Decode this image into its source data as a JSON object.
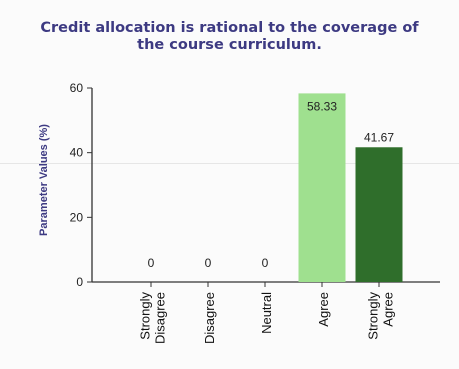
{
  "chart_data": {
    "type": "bar",
    "title_lines": [
      "Credit allocation is rational to the coverage of",
      "the course curriculum."
    ],
    "ylabel": "Parameter Values (%)",
    "xlabel": "",
    "ylim": [
      0,
      60
    ],
    "yticks": [
      0,
      20,
      40,
      60
    ],
    "categories": [
      "Strongly Disagree",
      "Disagree",
      "Neutral",
      "Agree",
      "Strongly Agree"
    ],
    "category_label_lines": [
      [
        "Strongly",
        "Disagree"
      ],
      [
        "Disagree"
      ],
      [
        "Neutral"
      ],
      [
        "Agree"
      ],
      [
        "Strongly",
        "Agree"
      ]
    ],
    "values": [
      0,
      0,
      0,
      58.33,
      41.67
    ],
    "value_labels": [
      "0",
      "0",
      "0",
      "58.33",
      "41.67"
    ],
    "bar_colors": [
      "#9fe08f",
      "#9fe08f",
      "#9fe08f",
      "#9fe08f",
      "#2f6e2b"
    ],
    "title_color": "#3d3a82",
    "ylabel_color": "#3d3a82",
    "grid": false,
    "legend": "none"
  }
}
